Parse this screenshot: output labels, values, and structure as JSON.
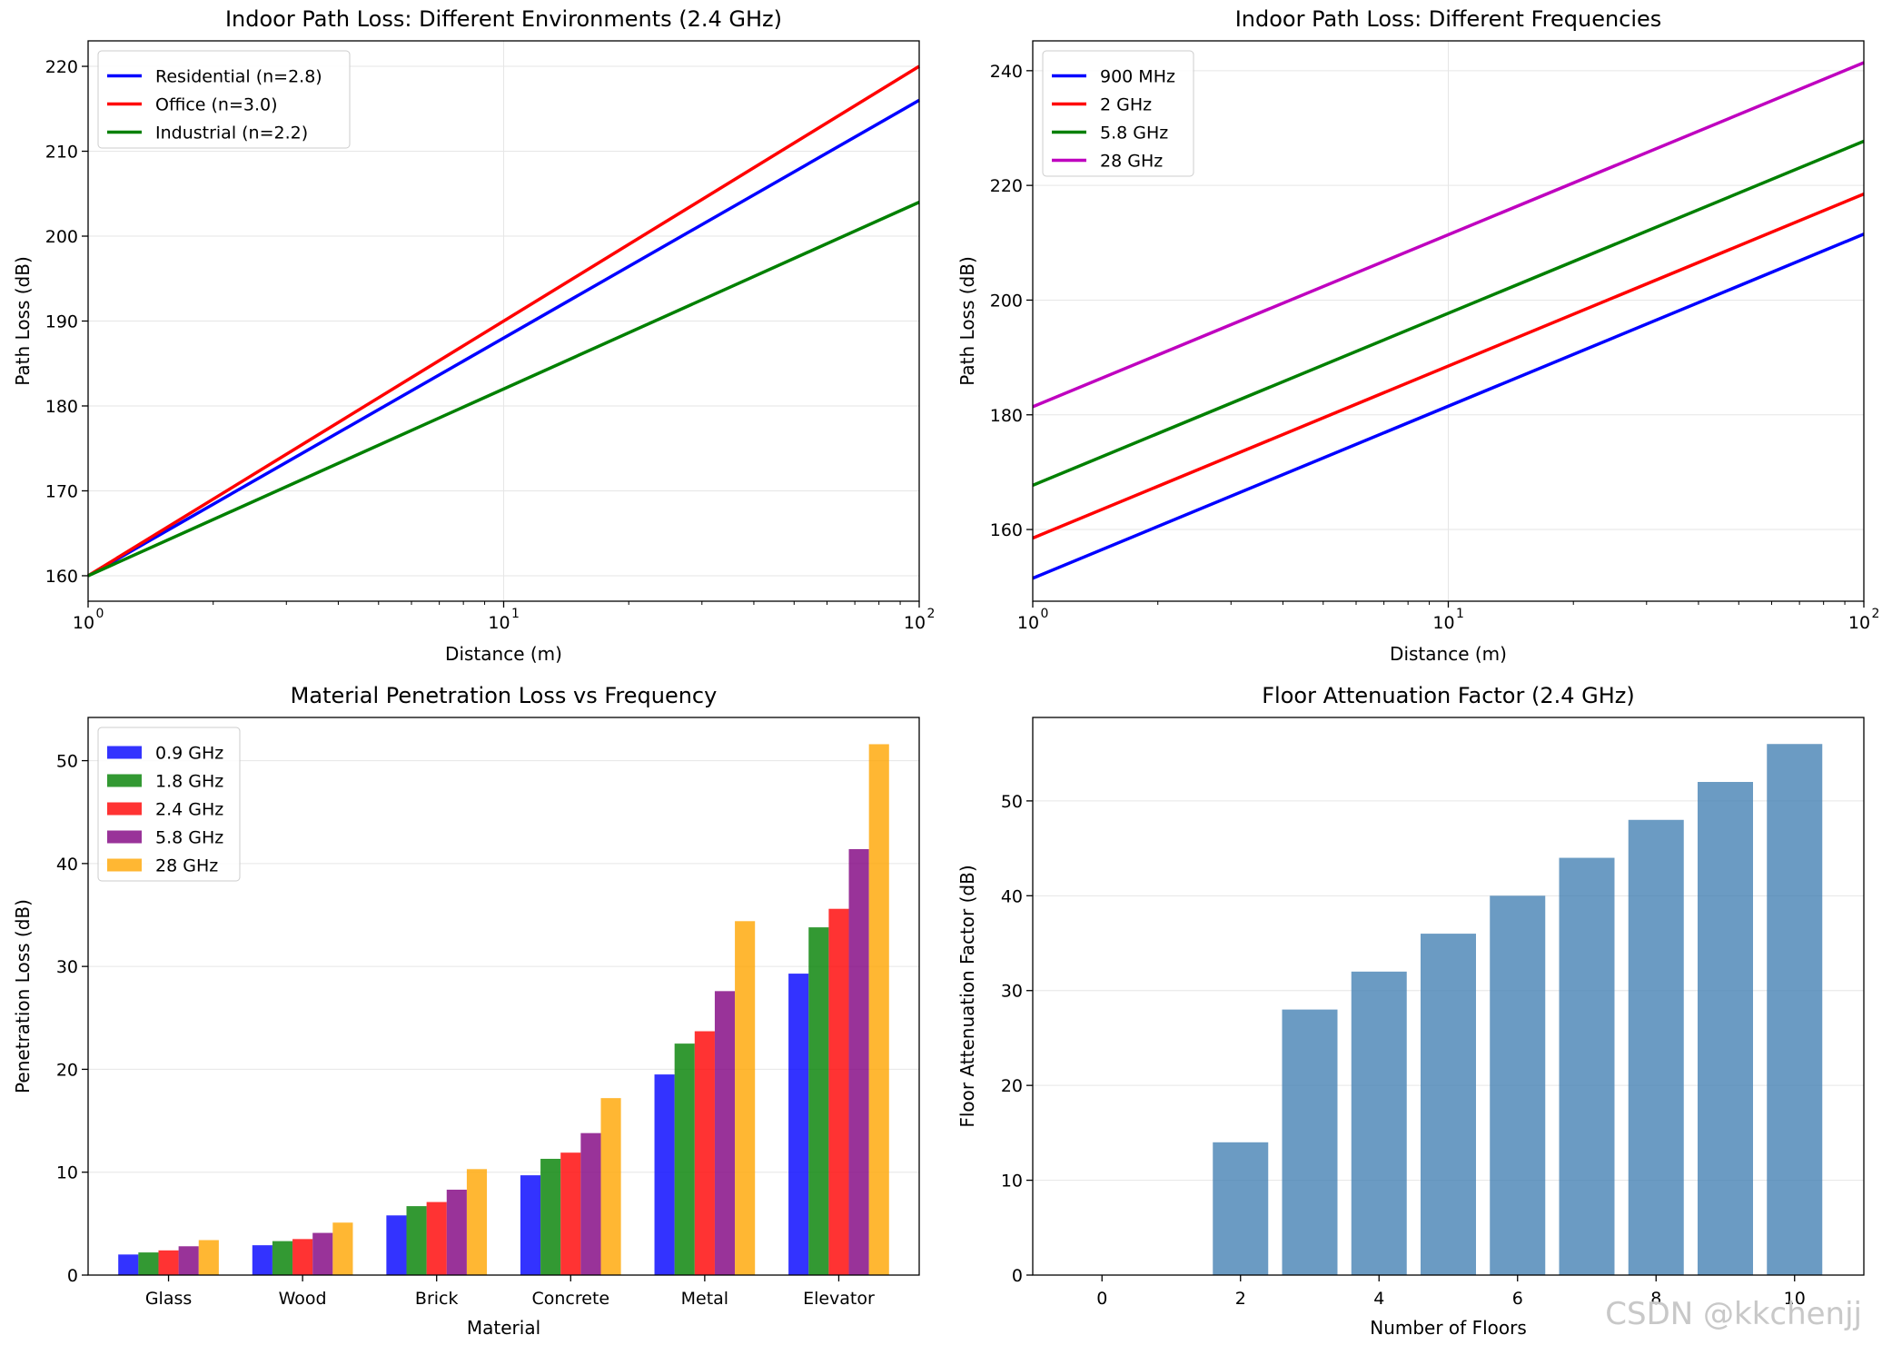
{
  "watermark": "CSDN @kkchenjj",
  "chart_data": [
    {
      "type": "line",
      "title": "Indoor Path Loss: Different Environments (2.4 GHz)",
      "xlabel": "Distance (m)",
      "ylabel": "Path Loss (dB)",
      "xscale": "log",
      "xlim": [
        1,
        100
      ],
      "ylim": [
        157,
        223
      ],
      "xticks": [
        {
          "v": 1,
          "base": "10",
          "exp": "0"
        },
        {
          "v": 10,
          "base": "10",
          "exp": "1"
        },
        {
          "v": 100,
          "base": "10",
          "exp": "2"
        }
      ],
      "yticks": [
        "160",
        "170",
        "180",
        "190",
        "200",
        "210",
        "220"
      ],
      "grid": true,
      "legend": "upper-left",
      "series": [
        {
          "name": "Residential (n=2.8)",
          "color": "#0000ff",
          "x": [
            1,
            100
          ],
          "values": [
            160,
            216
          ]
        },
        {
          "name": "Office (n=3.0)",
          "color": "#ff0000",
          "x": [
            1,
            100
          ],
          "values": [
            160,
            220
          ]
        },
        {
          "name": "Industrial (n=2.2)",
          "color": "#008000",
          "x": [
            1,
            100
          ],
          "values": [
            160,
            204
          ]
        }
      ]
    },
    {
      "type": "line",
      "title": "Indoor Path Loss: Different Frequencies",
      "xlabel": "Distance (m)",
      "ylabel": "Path Loss (dB)",
      "xscale": "log",
      "xlim": [
        1,
        100
      ],
      "ylim": [
        147.5,
        245.2
      ],
      "xticks": [
        {
          "v": 1,
          "base": "10",
          "exp": "0"
        },
        {
          "v": 10,
          "base": "10",
          "exp": "1"
        },
        {
          "v": 100,
          "base": "10",
          "exp": "2"
        }
      ],
      "yticks": [
        "160",
        "180",
        "200",
        "220",
        "240"
      ],
      "grid": true,
      "legend": "upper-left",
      "series": [
        {
          "name": "900 MHz",
          "color": "#0000ff",
          "x": [
            1,
            100
          ],
          "values": [
            151.5,
            211.5
          ]
        },
        {
          "name": "2 GHz",
          "color": "#ff0000",
          "x": [
            1,
            100
          ],
          "values": [
            158.5,
            218.5
          ]
        },
        {
          "name": "5.8 GHz",
          "color": "#008000",
          "x": [
            1,
            100
          ],
          "values": [
            167.7,
            227.7
          ]
        },
        {
          "name": "28 GHz",
          "color": "#bf00bf",
          "x": [
            1,
            100
          ],
          "values": [
            181.4,
            241.4
          ]
        }
      ]
    },
    {
      "type": "bar",
      "title": "Material Penetration Loss vs Frequency",
      "xlabel": "Material",
      "ylabel": "Penetration Loss (dB)",
      "categories": [
        "Glass",
        "Wood",
        "Brick",
        "Concrete",
        "Metal",
        "Elevator"
      ],
      "ylim": [
        0,
        54.2
      ],
      "yticks": [
        "0",
        "10",
        "20",
        "30",
        "40",
        "50"
      ],
      "grid": true,
      "legend": "upper-left",
      "series": [
        {
          "name": "0.9 GHz",
          "color": "#0000ff",
          "values": [
            2.0,
            2.9,
            5.8,
            9.7,
            19.5,
            29.3
          ]
        },
        {
          "name": "1.8 GHz",
          "color": "#008000",
          "values": [
            2.2,
            3.3,
            6.7,
            11.3,
            22.5,
            33.8
          ]
        },
        {
          "name": "2.4 GHz",
          "color": "#ff0000",
          "values": [
            2.4,
            3.5,
            7.1,
            11.9,
            23.7,
            35.6
          ]
        },
        {
          "name": "5.8 GHz",
          "color": "#800080",
          "values": [
            2.8,
            4.1,
            8.3,
            13.8,
            27.6,
            41.4
          ]
        },
        {
          "name": "28 GHz",
          "color": "#ffa500",
          "values": [
            3.4,
            5.1,
            10.3,
            17.2,
            34.4,
            51.6
          ]
        }
      ]
    },
    {
      "type": "bar",
      "title": "Floor Attenuation Factor (2.4 GHz)",
      "xlabel": "Number of Floors",
      "ylabel": "Floor Attenuation Factor (dB)",
      "x": [
        0,
        1,
        2,
        3,
        4,
        5,
        6,
        7,
        8,
        9,
        10
      ],
      "values": [
        0,
        0,
        14,
        28,
        32,
        36,
        40,
        44,
        48,
        52,
        56
      ],
      "xlim": [
        -1,
        11
      ],
      "ylim": [
        0,
        58.8
      ],
      "xticks": [
        "0",
        "2",
        "4",
        "6",
        "8",
        "10"
      ],
      "yticks": [
        "0",
        "10",
        "20",
        "30",
        "40",
        "50"
      ],
      "grid": true,
      "color": "#4682b4"
    }
  ]
}
